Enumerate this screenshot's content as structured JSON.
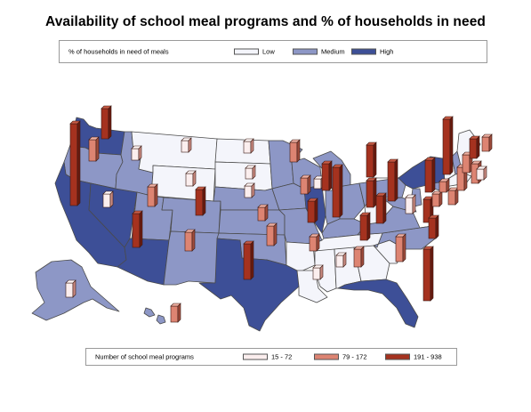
{
  "title": "Availability of school meal programs and % of households in need",
  "need_legend": {
    "title": "% of households in need of meals",
    "items": [
      {
        "label": "Low",
        "color": "#f4f5fb"
      },
      {
        "label": "Medium",
        "color": "#8d97c6"
      },
      {
        "label": "High",
        "color": "#3d4f97"
      }
    ]
  },
  "program_legend": {
    "title": "Number of school meal programs",
    "items": [
      {
        "label": "15 - 72",
        "color": "#fbeeee"
      },
      {
        "label": "79 - 172",
        "color": "#dd8472"
      },
      {
        "label": "191 - 938",
        "color": "#a5321f"
      }
    ]
  },
  "map_colors": {
    "low": "#f4f5fb",
    "medium": "#8d97c6",
    "high": "#3d4f97",
    "border": "#4a4a4a"
  }
}
